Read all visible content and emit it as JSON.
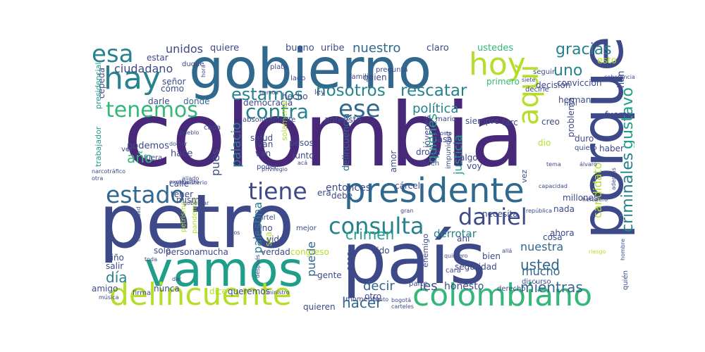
{
  "palette": {
    "dark_purple": "#482878",
    "deep_blue": "#3e4989",
    "steel_blue": "#31688e",
    "teal": "#26828e",
    "green_teal": "#1f9e89",
    "green": "#35b779",
    "light_green": "#6ece58",
    "lime": "#b5de2b"
  },
  "words": [
    {
      "text": "colombia",
      "color": "#482878"
    },
    {
      "text": "petro",
      "color": "#3e4989"
    },
    {
      "text": "gobierno",
      "color": "#31688e"
    },
    {
      "text": "país",
      "color": "#3e4989"
    },
    {
      "text": "porque",
      "color": "#3e4989"
    },
    {
      "text": "vamos",
      "color": "#1f9e89"
    },
    {
      "text": "presidente",
      "color": "#31688e"
    },
    {
      "text": "colombiano",
      "color": "#35b779"
    },
    {
      "text": "delincuente",
      "color": "#b5de2b"
    },
    {
      "text": "hay",
      "color": "#26828e"
    },
    {
      "text": "hoy",
      "color": "#b5de2b"
    },
    {
      "text": "aquí",
      "color": "#b5de2b"
    },
    {
      "text": "esa",
      "color": "#26828e"
    },
    {
      "text": "ese",
      "color": "#31688e"
    },
    {
      "text": "tenemos",
      "color": "#35b779"
    },
    {
      "text": "estado",
      "color": "#31688e"
    },
    {
      "text": "tiene",
      "color": "#3e4989"
    },
    {
      "text": "consulta",
      "color": "#26828e"
    },
    {
      "text": "daniel",
      "color": "#3e4989"
    },
    {
      "text": "contra",
      "color": "#26828e"
    },
    {
      "text": "estamos",
      "color": "#26828e"
    },
    {
      "text": "nosotros",
      "color": "#26828e"
    },
    {
      "text": "rescatar",
      "color": "#26828e"
    },
    {
      "text": "gracias",
      "color": "#26828e"
    },
    {
      "text": "uno",
      "color": "#26828e"
    },
    {
      "text": "gustavo",
      "color": "#1f9e89"
    },
    {
      "text": "criminales",
      "color": "#26828e"
    },
    {
      "text": "usted",
      "color": "#31688e"
    },
    {
      "text": "mientras",
      "color": "#31688e"
    },
    {
      "text": "hacer",
      "color": "#31688e"
    },
    {
      "text": "día",
      "color": "#26828e"
    },
    {
      "text": "año",
      "color": "#35b779"
    },
    {
      "text": "crimen",
      "color": "#1f9e89"
    },
    {
      "text": "decir",
      "color": "#31688e"
    },
    {
      "text": "les",
      "color": "#3e4989"
    },
    {
      "text": "nuestro",
      "color": "#31688e"
    },
    {
      "text": "política",
      "color": "#26828e"
    },
    {
      "text": "unidos",
      "color": "#3e4989"
    },
    {
      "text": "ciudadano",
      "color": "#3e4989"
    },
    {
      "text": "palacio",
      "color": "#26828e"
    },
    {
      "text": "quienes",
      "color": "#1f9e89"
    },
    {
      "text": "justicia",
      "color": "#1f9e89"
    },
    {
      "text": "candidato",
      "color": "#b5de2b"
    },
    {
      "text": "mucho",
      "color": "#31688e"
    },
    {
      "text": "nuestra",
      "color": "#31688e"
    },
    {
      "text": "puede",
      "color": "#31688e"
    },
    {
      "text": "palestina",
      "color": "#26828e"
    },
    {
      "text": "pues",
      "color": "#3e4989"
    },
    {
      "text": "derrotar",
      "color": "#26828e"
    },
    {
      "text": "entonces",
      "color": "#3e4989"
    },
    {
      "text": "honesto",
      "color": "#3e4989"
    },
    {
      "text": "quiere",
      "color": "#3e4989"
    },
    {
      "text": "bueno",
      "color": "#3e4989"
    },
    {
      "text": "uribe",
      "color": "#3e4989"
    },
    {
      "text": "claro",
      "color": "#3e4989"
    },
    {
      "text": "ustedes",
      "color": "#35b779"
    },
    {
      "text": "esto",
      "color": "#b5de2b"
    },
    {
      "text": "han",
      "color": "#3e4989"
    },
    {
      "text": "estar",
      "color": "#3e4989"
    },
    {
      "text": "señor",
      "color": "#3e4989"
    },
    {
      "text": "cómo",
      "color": "#3e4989"
    },
    {
      "text": "darle",
      "color": "#3e4989"
    },
    {
      "text": "donde",
      "color": "#31688e"
    },
    {
      "text": "podemos",
      "color": "#3e4989"
    },
    {
      "text": "hace",
      "color": "#3e4989"
    },
    {
      "text": "calle",
      "color": "#3e4989"
    },
    {
      "text": "tener",
      "color": "#3e4989"
    },
    {
      "text": "mismo",
      "color": "#3e4989"
    },
    {
      "text": "solo",
      "color": "#3e4989"
    },
    {
      "text": "persona",
      "color": "#3e4989"
    },
    {
      "text": "mucha",
      "color": "#3e4989"
    },
    {
      "text": "salir",
      "color": "#3e4989"
    },
    {
      "text": "niño",
      "color": "#3e4989"
    },
    {
      "text": "amigo",
      "color": "#3e4989"
    },
    {
      "text": "nunca",
      "color": "#3e4989"
    },
    {
      "text": "dice",
      "color": "#b5de2b"
    },
    {
      "text": "queremos",
      "color": "#3e4989"
    },
    {
      "text": "democracia",
      "color": "#3e4989"
    },
    {
      "text": "hecho",
      "color": "#3e4989"
    },
    {
      "text": "salud",
      "color": "#3e4989"
    },
    {
      "text": "iván",
      "color": "#3e4989"
    },
    {
      "text": "van",
      "color": "#3e4989"
    },
    {
      "text": "pesos",
      "color": "#3e4989"
    },
    {
      "text": "junto",
      "color": "#3e4989"
    },
    {
      "text": "delincuencia",
      "color": "#31688e"
    },
    {
      "text": "esta",
      "color": "#3e4989"
    },
    {
      "text": "ante",
      "color": "#3e4989"
    },
    {
      "text": "quien",
      "color": "#3e4989"
    },
    {
      "text": "primero",
      "color": "#35b779"
    },
    {
      "text": "farc",
      "color": "#3e4989"
    },
    {
      "text": "siempre",
      "color": "#3e4989"
    },
    {
      "text": "jóvenes",
      "color": "#3e4989"
    },
    {
      "text": "droga",
      "color": "#3e4989"
    },
    {
      "text": "algo",
      "color": "#3e4989"
    },
    {
      "text": "voy",
      "color": "#3e4989"
    },
    {
      "text": "pasa",
      "color": "#3e4989"
    },
    {
      "text": "amor",
      "color": "#3e4989"
    },
    {
      "text": "cárcel",
      "color": "#3e4989"
    },
    {
      "text": "debe",
      "color": "#3e4989"
    },
    {
      "text": "era",
      "color": "#3e4989"
    },
    {
      "text": "sino",
      "color": "#3e4989"
    },
    {
      "text": "sea",
      "color": "#b5de2b"
    },
    {
      "text": "verdad",
      "color": "#3e4989"
    },
    {
      "text": "vida",
      "color": "#3e4989"
    },
    {
      "text": "sido",
      "color": "#3e4989"
    },
    {
      "text": "congreso",
      "color": "#b5de2b"
    },
    {
      "text": "gente",
      "color": "#3e4989"
    },
    {
      "text": "esos",
      "color": "#3e4989"
    },
    {
      "text": "otro",
      "color": "#3e4989"
    },
    {
      "text": "ahí",
      "color": "#3e4989"
    },
    {
      "text": "bien",
      "color": "#3e4989"
    },
    {
      "text": "seguridad",
      "color": "#3e4989"
    },
    {
      "text": "cosa",
      "color": "#3e4989"
    },
    {
      "text": "ahora",
      "color": "#3e4989"
    },
    {
      "text": "nada",
      "color": "#3e4989"
    },
    {
      "text": "necesita",
      "color": "#3e4989"
    },
    {
      "text": "quieren",
      "color": "#3e4989"
    },
    {
      "text": "parte",
      "color": "#3e4989"
    },
    {
      "text": "discurso",
      "color": "#3e4989"
    },
    {
      "text": "derecho",
      "color": "#3e4989"
    },
    {
      "text": "quién",
      "color": "#3e4989"
    },
    {
      "text": "duro",
      "color": "#3e4989"
    },
    {
      "text": "haber",
      "color": "#3e4989"
    },
    {
      "text": "fuerza",
      "color": "#3e4989"
    },
    {
      "text": "creo",
      "color": "#3e4989"
    },
    {
      "text": "dio",
      "color": "#b5de2b"
    },
    {
      "text": "decisión",
      "color": "#3e4989"
    },
    {
      "text": "millones",
      "color": "#3e4989"
    },
    {
      "text": "hermano",
      "color": "#3e4989"
    },
    {
      "text": "convicción",
      "color": "#3e4989"
    },
    {
      "text": "problema",
      "color": "#3e4989"
    },
    {
      "text": "quiero",
      "color": "#3e4989"
    },
    {
      "text": "cepeda",
      "color": "#3e4989"
    },
    {
      "text": "presidencial",
      "color": "#1f9e89"
    },
    {
      "text": "trabajador",
      "color": "#1f9e89"
    },
    {
      "text": "enemigo",
      "color": "#3e4989"
    },
    {
      "text": "mal",
      "color": "#3e4989"
    },
    {
      "text": "vez",
      "color": "#3e4989"
    },
    {
      "text": "mario",
      "color": "#3e4989"
    },
    {
      "text": "impunidad",
      "color": "#3e4989"
    },
    {
      "text": "poder",
      "color": "#3e4989"
    },
    {
      "text": "dicen",
      "color": "#3e4989"
    },
    {
      "text": "fuera",
      "color": "#3e4989"
    },
    {
      "text": "ver",
      "color": "#3e4989"
    },
    {
      "text": "cada",
      "color": "#3e4989"
    },
    {
      "text": "lado",
      "color": "#3e4989"
    },
    {
      "text": "ley",
      "color": "#3e4989"
    },
    {
      "text": "plata",
      "color": "#3e4989"
    },
    {
      "text": "duque",
      "color": "#3e4989"
    },
    {
      "text": "pregunta",
      "color": "#3e4989"
    },
    {
      "text": "familia",
      "color": "#3e4989"
    },
    {
      "text": "seguir",
      "color": "#3e4989"
    },
    {
      "text": "coherencia",
      "color": "#3e4989"
    },
    {
      "text": "siete",
      "color": "#3e4989"
    },
    {
      "text": "agosto",
      "color": "#3e4989"
    },
    {
      "text": "doctor",
      "color": "#3e4989"
    },
    {
      "text": "pueblo",
      "color": "#3e4989"
    },
    {
      "text": "solamente",
      "color": "#b5de2b"
    },
    {
      "text": "ministerio",
      "color": "#3e4989"
    },
    {
      "text": "privilegio",
      "color": "#3e4989"
    },
    {
      "text": "narcotráfico",
      "color": "#3e4989"
    },
    {
      "text": "aliado",
      "color": "#3e4989"
    },
    {
      "text": "exministro",
      "color": "#3e4989"
    },
    {
      "text": "tema",
      "color": "#3e4989"
    },
    {
      "text": "álvaro",
      "color": "#3e4989"
    },
    {
      "text": "además",
      "color": "#3e4989"
    },
    {
      "text": "capacidad",
      "color": "#3e4989"
    },
    {
      "text": "heredero",
      "color": "#3e4989"
    },
    {
      "text": "república",
      "color": "#3e4989"
    },
    {
      "text": "gran",
      "color": "#3e4989"
    },
    {
      "text": "cartel",
      "color": "#3e4989"
    },
    {
      "text": "mejor",
      "color": "#3e4989"
    },
    {
      "text": "ellos",
      "color": "#3e4989"
    },
    {
      "text": "petrismo",
      "color": "#b5de2b"
    },
    {
      "text": "pandemia",
      "color": "#b5de2b"
    },
    {
      "text": "criminalidad",
      "color": "#3e4989"
    },
    {
      "text": "allá",
      "color": "#3e4989"
    },
    {
      "text": "quintero",
      "color": "#3e4989"
    },
    {
      "text": "hombre",
      "color": "#3e4989"
    },
    {
      "text": "cara",
      "color": "#3e4989"
    },
    {
      "text": "momento",
      "color": "#3e4989"
    },
    {
      "text": "tanto",
      "color": "#3e4989"
    },
    {
      "text": "bogotá",
      "color": "#3e4989"
    },
    {
      "text": "carteles",
      "color": "#3e4989"
    },
    {
      "text": "ministro",
      "color": "#3e4989"
    },
    {
      "text": "después",
      "color": "#3e4989"
    },
    {
      "text": "firma",
      "color": "#3e4989"
    },
    {
      "text": "otra",
      "color": "#3e4989"
    },
    {
      "text": "hora",
      "color": "#3e4989"
    },
    {
      "text": "hemos",
      "color": "#3e4989"
    },
    {
      "text": "absolutamente",
      "color": "#3e4989"
    },
    {
      "text": "gobernar",
      "color": "#3e4989"
    },
    {
      "text": "decirle",
      "color": "#3e4989"
    },
    {
      "text": "toda",
      "color": "#3e4989"
    },
    {
      "text": "música",
      "color": "#3e4989"
    },
    {
      "text": "dar",
      "color": "#3e4989"
    },
    {
      "text": "acá",
      "color": "#3e4989"
    },
    {
      "text": "riesgo",
      "color": "#b5de2b"
    }
  ]
}
